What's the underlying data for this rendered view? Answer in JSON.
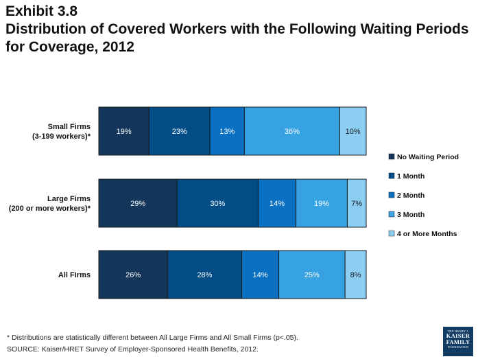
{
  "header": {
    "exhibit": "Exhibit 3.8",
    "title": "Distribution of Covered Workers with the Following Waiting Periods for Coverage, 2012"
  },
  "chart_data": {
    "type": "bar",
    "orientation": "horizontal-stacked",
    "categories": [
      [
        "Small Firms",
        "(3-199 workers)*"
      ],
      [
        "Large Firms",
        "(200 or more workers)*"
      ],
      [
        "All Firms"
      ]
    ],
    "series": [
      {
        "name": "No Waiting Period",
        "values": [
          19,
          29,
          26
        ],
        "color": "#14365a"
      },
      {
        "name": "1 Month",
        "values": [
          23,
          30,
          28
        ],
        "color": "#034d87"
      },
      {
        "name": "2 Month",
        "values": [
          13,
          14,
          14
        ],
        "color": "#0a70c2"
      },
      {
        "name": "3 Month",
        "values": [
          36,
          19,
          25
        ],
        "color": "#36a2e2"
      },
      {
        "name": "4 or More Months",
        "values": [
          10,
          7,
          8
        ],
        "color": "#8ccdf2"
      }
    ],
    "data_label_suffix": "%",
    "legend_position": "right"
  },
  "footer": {
    "footnote": "* Distributions are statistically different between All Large Firms and All Small Firms (p<.05).",
    "source": "SOURCE: Kaiser/HRET Survey of Employer-Sponsored Health Benefits, 2012."
  },
  "logo": {
    "line1": "THE HENRY J.",
    "line2": "KAISER",
    "line3": "FAMILY",
    "line4": "FOUNDATION"
  }
}
